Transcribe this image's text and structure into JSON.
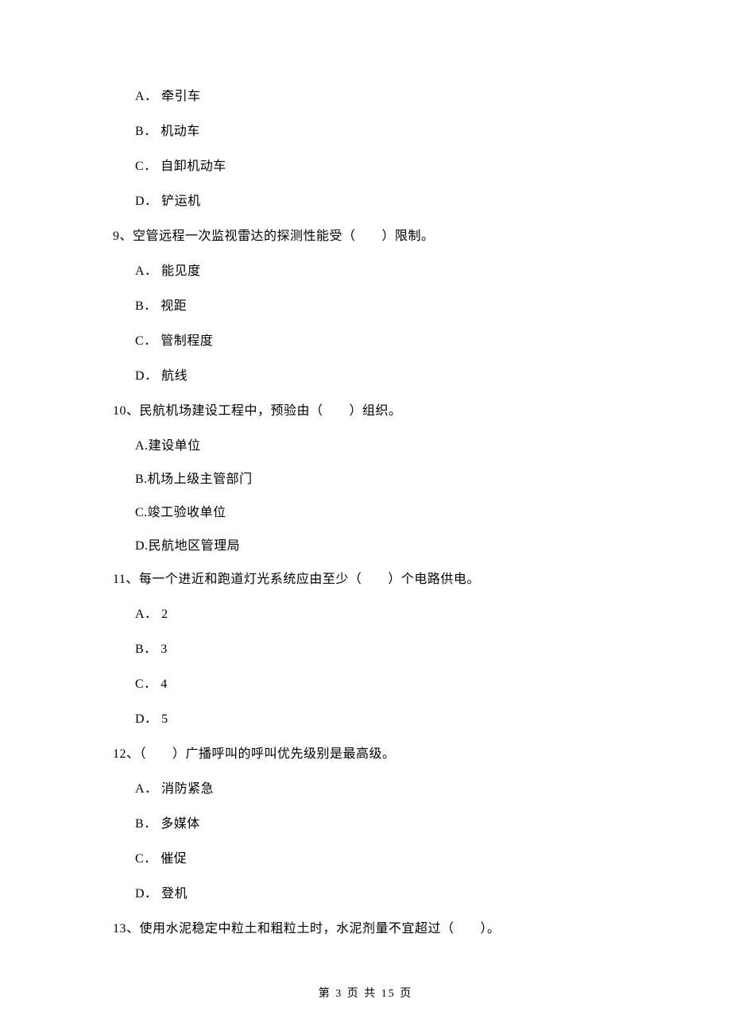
{
  "text_color": "#000000",
  "background_color": "#ffffff",
  "body_font_size": 16,
  "footer_font_size": 14,
  "q_pre": {
    "options": [
      {
        "label": "A．",
        "text": "牵引车"
      },
      {
        "label": "B．",
        "text": "机动车"
      },
      {
        "label": "C．",
        "text": "自卸机动车"
      },
      {
        "label": "D．",
        "text": "铲运机"
      }
    ]
  },
  "q9": {
    "stem": "9、空管远程一次监视雷达的探测性能受（　　）限制。",
    "options": [
      {
        "label": "A．",
        "text": "能见度"
      },
      {
        "label": "B．",
        "text": "视距"
      },
      {
        "label": "C．",
        "text": "管制程度"
      },
      {
        "label": "D．",
        "text": "航线"
      }
    ]
  },
  "q10": {
    "stem": "10、民航机场建设工程中，预验由（　　）组织。",
    "options": [
      {
        "label": "A.",
        "text": "建设单位"
      },
      {
        "label": "B.",
        "text": "机场上级主管部门"
      },
      {
        "label": "C.",
        "text": "竣工验收单位"
      },
      {
        "label": "D.",
        "text": "民航地区管理局"
      }
    ]
  },
  "q11": {
    "stem": "11、每一个进近和跑道灯光系统应由至少（　　）个电路供电。",
    "options": [
      {
        "label": "A．",
        "text": "2"
      },
      {
        "label": "B．",
        "text": "3"
      },
      {
        "label": "C．",
        "text": "4"
      },
      {
        "label": "D．",
        "text": "5"
      }
    ]
  },
  "q12": {
    "stem": "12、（　　）广播呼叫的呼叫优先级别是最高级。",
    "options": [
      {
        "label": "A．",
        "text": "消防紧急"
      },
      {
        "label": "B．",
        "text": "多媒体"
      },
      {
        "label": "C．",
        "text": "催促"
      },
      {
        "label": "D．",
        "text": "登机"
      }
    ]
  },
  "q13": {
    "stem": "13、使用水泥稳定中粒土和粗粒土时，水泥剂量不宜超过（　　）。"
  },
  "footer": "第 3 页 共 15 页"
}
